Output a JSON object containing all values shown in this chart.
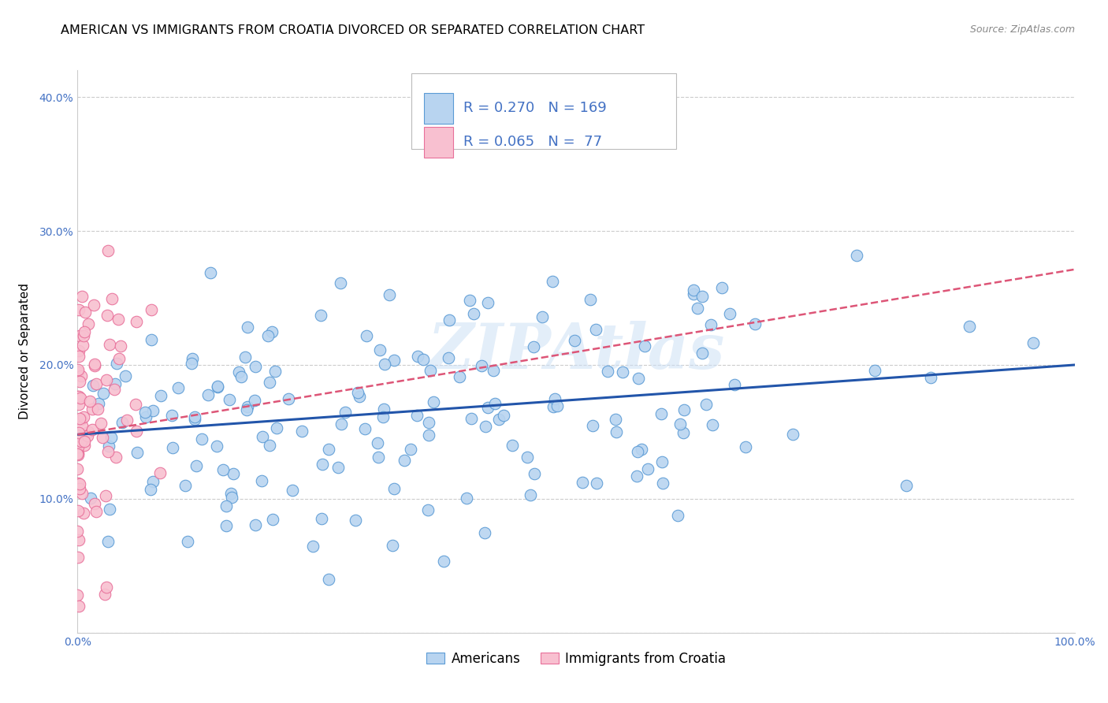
{
  "title": "AMERICAN VS IMMIGRANTS FROM CROATIA DIVORCED OR SEPARATED CORRELATION CHART",
  "source": "Source: ZipAtlas.com",
  "ylabel": "Divorced or Separated",
  "xlim": [
    0,
    1.0
  ],
  "ylim": [
    0,
    0.42
  ],
  "xticks": [
    0.0,
    0.1,
    0.2,
    0.3,
    0.4,
    0.5,
    0.6,
    0.7,
    0.8,
    0.9,
    1.0
  ],
  "xticklabels": [
    "0.0%",
    "",
    "",
    "",
    "",
    "",
    "",
    "",
    "",
    "",
    "100.0%"
  ],
  "yticks": [
    0.0,
    0.1,
    0.2,
    0.3,
    0.4
  ],
  "yticklabels": [
    "",
    "10.0%",
    "20.0%",
    "30.0%",
    "40.0%"
  ],
  "americans_face_color": "#b8d4f0",
  "americans_edge_color": "#5b9bd5",
  "croatia_face_color": "#f8c0d0",
  "croatia_edge_color": "#e8709a",
  "americans_R": 0.27,
  "americans_N": 169,
  "croatia_R": 0.065,
  "croatia_N": 77,
  "legend_text_color": "#4472c4",
  "tick_color": "#4472c4",
  "watermark": "ZIPAtlas",
  "background_color": "#ffffff",
  "grid_color": "#cccccc",
  "americans_line_color": "#2255aa",
  "croatia_line_color": "#dd5577",
  "title_fontsize": 11.5,
  "axis_label_fontsize": 11,
  "tick_fontsize": 10,
  "legend_fontsize": 13,
  "source_fontsize": 9,
  "am_line_start_y": 0.148,
  "am_line_end_y": 0.2,
  "cr_line_start_y": 0.148,
  "cr_line_end_y": 0.185,
  "cr_line_end_x": 0.3
}
